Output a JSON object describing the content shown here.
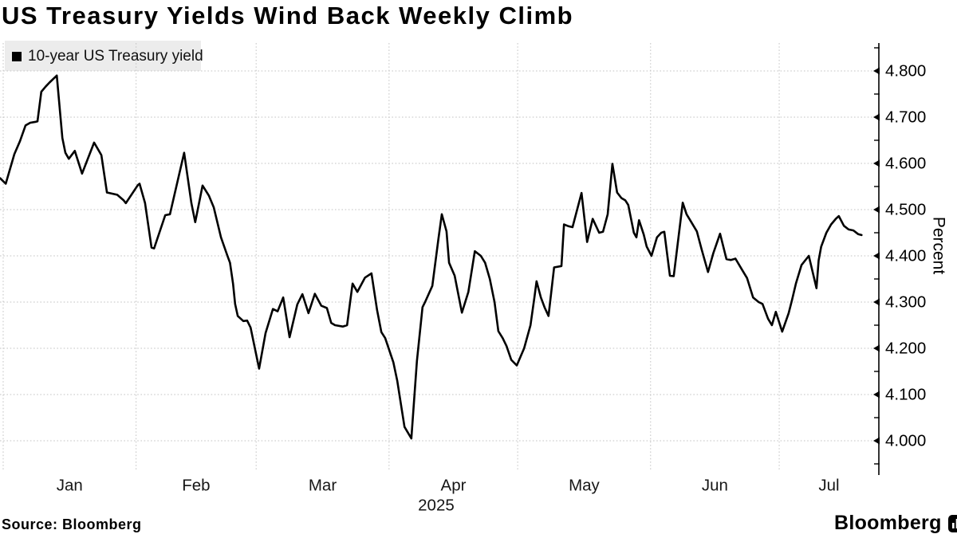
{
  "title": "US Treasury Yields Wind Back Weekly Climb",
  "legend": {
    "label": "10-year US Treasury yield"
  },
  "source_text": "Source: Bloomberg",
  "branding": {
    "logo_text": "Bloomberg",
    "logo_icon": "bloomberg-bars-icon"
  },
  "colors": {
    "line": "#000000",
    "grid": "#c3c3c3",
    "legend_bg": "#ececec",
    "axis": "#000000",
    "tick_label": "#000000",
    "month_label": "#161616"
  },
  "axis": {
    "y_title": "Percent",
    "y_tick_labels": [
      "4.800",
      "4.700",
      "4.600",
      "4.500",
      "4.400",
      "4.300",
      "4.200",
      "4.100",
      "4.000"
    ],
    "y_minor_tick_values": [
      3.95,
      4.05,
      4.15,
      4.25,
      4.35,
      4.45,
      4.55,
      4.65,
      4.75,
      4.85
    ],
    "x_tick_labels": [
      "Jan",
      "Feb",
      "Mar",
      "Apr",
      "May",
      "Jun",
      "Jul"
    ],
    "x_year_label": "2025",
    "month_day_spans": [
      [
        1,
        32
      ],
      [
        32,
        60
      ],
      [
        60,
        91
      ],
      [
        91,
        121
      ],
      [
        121,
        152
      ],
      [
        152,
        182
      ],
      [
        182,
        213
      ]
    ]
  },
  "chart_data": {
    "type": "line",
    "title": "US Treasury Yields Wind Back Weekly Climb",
    "series_name": "10-year US Treasury yield",
    "xlabel": "",
    "ylabel": "Percent",
    "ylim": [
      3.94,
      4.86
    ],
    "y_major_step": 0.1,
    "x_unit": "day-of-year 2025 (Jan 1 = 1)",
    "x_range": "Jan 1 2025 - ~Jul 20 2025",
    "grid": true,
    "legend_position": "top-left",
    "points": [
      [
        0.3,
        4.568
      ],
      [
        1.6,
        4.556
      ],
      [
        3.6,
        4.62
      ],
      [
        4.9,
        4.648
      ],
      [
        6.2,
        4.682
      ],
      [
        7.3,
        4.688
      ],
      [
        8.6,
        4.69
      ],
      [
        9.0,
        4.691
      ],
      [
        9.9,
        4.755
      ],
      [
        10.9,
        4.766
      ],
      [
        11.8,
        4.775
      ],
      [
        13.5,
        4.79
      ],
      [
        14.8,
        4.655
      ],
      [
        15.5,
        4.623
      ],
      [
        16.3,
        4.61
      ],
      [
        17.7,
        4.627
      ],
      [
        19.4,
        4.578
      ],
      [
        22.2,
        4.645
      ],
      [
        23.9,
        4.618
      ],
      [
        25.2,
        4.537
      ],
      [
        27.6,
        4.532
      ],
      [
        29.1,
        4.52
      ],
      [
        29.6,
        4.514
      ],
      [
        32.4,
        4.553
      ],
      [
        32.8,
        4.556
      ],
      [
        34.1,
        4.514
      ],
      [
        35.6,
        4.418
      ],
      [
        36.2,
        4.416
      ],
      [
        38.8,
        4.488
      ],
      [
        39.9,
        4.49
      ],
      [
        43.2,
        4.623
      ],
      [
        44.9,
        4.514
      ],
      [
        45.8,
        4.473
      ],
      [
        47.5,
        4.552
      ],
      [
        49.0,
        4.53
      ],
      [
        50.1,
        4.505
      ],
      [
        51.8,
        4.44
      ],
      [
        53.3,
        4.4
      ],
      [
        53.9,
        4.385
      ],
      [
        54.6,
        4.34
      ],
      [
        55.1,
        4.296
      ],
      [
        55.7,
        4.27
      ],
      [
        57.0,
        4.259
      ],
      [
        57.9,
        4.26
      ],
      [
        58.7,
        4.245
      ],
      [
        60.7,
        4.156
      ],
      [
        62.2,
        4.233
      ],
      [
        63.9,
        4.285
      ],
      [
        65.0,
        4.28
      ],
      [
        66.3,
        4.31
      ],
      [
        67.8,
        4.224
      ],
      [
        69.6,
        4.295
      ],
      [
        70.8,
        4.317
      ],
      [
        72.2,
        4.276
      ],
      [
        73.7,
        4.318
      ],
      [
        75.2,
        4.292
      ],
      [
        76.5,
        4.287
      ],
      [
        77.5,
        4.255
      ],
      [
        78.4,
        4.25
      ],
      [
        80.2,
        4.247
      ],
      [
        81.2,
        4.25
      ],
      [
        82.5,
        4.34
      ],
      [
        83.6,
        4.322
      ],
      [
        85.4,
        4.353
      ],
      [
        86.9,
        4.362
      ],
      [
        88.2,
        4.283
      ],
      [
        89.2,
        4.235
      ],
      [
        90.1,
        4.222
      ],
      [
        92.0,
        4.17
      ],
      [
        92.9,
        4.13
      ],
      [
        94.6,
        4.03
      ],
      [
        96.2,
        4.005
      ],
      [
        97.5,
        4.173
      ],
      [
        98.8,
        4.289
      ],
      [
        99.4,
        4.3
      ],
      [
        101.1,
        4.335
      ],
      [
        102.5,
        4.436
      ],
      [
        103.3,
        4.49
      ],
      [
        104.4,
        4.453
      ],
      [
        105.0,
        4.385
      ],
      [
        106.3,
        4.357
      ],
      [
        108.0,
        4.277
      ],
      [
        109.5,
        4.322
      ],
      [
        111.0,
        4.41
      ],
      [
        112.4,
        4.4
      ],
      [
        113.4,
        4.385
      ],
      [
        114.5,
        4.35
      ],
      [
        115.6,
        4.3
      ],
      [
        116.5,
        4.237
      ],
      [
        117.5,
        4.222
      ],
      [
        118.4,
        4.205
      ],
      [
        119.5,
        4.175
      ],
      [
        120.8,
        4.163
      ],
      [
        122.5,
        4.2
      ],
      [
        124.0,
        4.25
      ],
      [
        124.9,
        4.31
      ],
      [
        125.4,
        4.345
      ],
      [
        126.4,
        4.31
      ],
      [
        127.3,
        4.288
      ],
      [
        128.2,
        4.27
      ],
      [
        129.5,
        4.375
      ],
      [
        131.2,
        4.378
      ],
      [
        131.8,
        4.468
      ],
      [
        132.9,
        4.464
      ],
      [
        133.8,
        4.462
      ],
      [
        135.9,
        4.536
      ],
      [
        137.2,
        4.43
      ],
      [
        138.5,
        4.48
      ],
      [
        140.0,
        4.45
      ],
      [
        140.9,
        4.452
      ],
      [
        142.0,
        4.49
      ],
      [
        143.1,
        4.599
      ],
      [
        144.2,
        4.537
      ],
      [
        145.2,
        4.525
      ],
      [
        146.1,
        4.52
      ],
      [
        146.8,
        4.51
      ],
      [
        148.1,
        4.45
      ],
      [
        148.7,
        4.44
      ],
      [
        149.3,
        4.477
      ],
      [
        150.4,
        4.446
      ],
      [
        151.1,
        4.42
      ],
      [
        152.2,
        4.4
      ],
      [
        153.5,
        4.44
      ],
      [
        154.5,
        4.45
      ],
      [
        155.2,
        4.452
      ],
      [
        156.5,
        4.357
      ],
      [
        157.4,
        4.356
      ],
      [
        159.5,
        4.515
      ],
      [
        160.4,
        4.49
      ],
      [
        161.3,
        4.476
      ],
      [
        162.8,
        4.453
      ],
      [
        163.9,
        4.414
      ],
      [
        165.4,
        4.365
      ],
      [
        166.6,
        4.405
      ],
      [
        168.2,
        4.448
      ],
      [
        169.7,
        4.393
      ],
      [
        170.7,
        4.391
      ],
      [
        171.8,
        4.394
      ],
      [
        173.2,
        4.372
      ],
      [
        174.5,
        4.352
      ],
      [
        175.9,
        4.31
      ],
      [
        177.2,
        4.3
      ],
      [
        178.1,
        4.296
      ],
      [
        179.4,
        4.264
      ],
      [
        180.3,
        4.25
      ],
      [
        181.2,
        4.279
      ],
      [
        182.7,
        4.236
      ],
      [
        184.2,
        4.276
      ],
      [
        185.0,
        4.305
      ],
      [
        185.9,
        4.34
      ],
      [
        187.2,
        4.38
      ],
      [
        188.9,
        4.4
      ],
      [
        190.7,
        4.33
      ],
      [
        191.2,
        4.39
      ],
      [
        191.8,
        4.42
      ],
      [
        193.0,
        4.45
      ],
      [
        194.1,
        4.468
      ],
      [
        195.2,
        4.48
      ],
      [
        195.9,
        4.486
      ],
      [
        197.1,
        4.465
      ],
      [
        198.2,
        4.457
      ],
      [
        199.3,
        4.455
      ],
      [
        200.4,
        4.447
      ],
      [
        201.2,
        4.445
      ]
    ]
  }
}
